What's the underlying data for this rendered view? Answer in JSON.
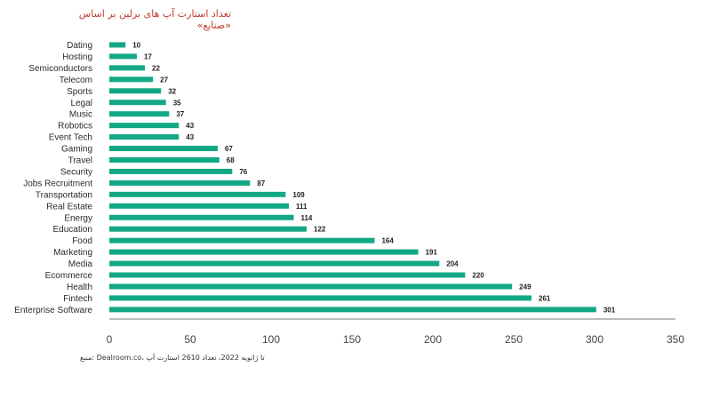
{
  "colors": {
    "bar": "#12a886",
    "axis": "#777777",
    "title": "#c0392b"
  },
  "chart_data": {
    "type": "bar",
    "orientation": "horizontal",
    "title": "تعداد استارت آپ های برلین بر اساس «صنایع»",
    "source_note": "منبع: Dealroom.co، تا ژانویه 2022، تعداد 2610 استارت آپ",
    "categories": [
      "Dating",
      "Hosting",
      "Semiconductors",
      "Telecom",
      "Sports",
      "Legal",
      "Music",
      "Robotics",
      "Event Tech",
      "Gaming",
      "Travel",
      "Security",
      "Jobs Recruitment",
      "Transportation",
      "Real Estate",
      "Energy",
      "Education",
      "Food",
      "Marketing",
      "Media",
      "Ecommerce",
      "Health",
      "Fintech",
      "Enterprise Software"
    ],
    "values": [
      10,
      17,
      22,
      27,
      32,
      35,
      37,
      43,
      43,
      67,
      68,
      76,
      87,
      109,
      111,
      114,
      122,
      164,
      191,
      204,
      220,
      249,
      261,
      301
    ],
    "xlim": [
      0,
      350
    ],
    "xticks": [
      0,
      50,
      100,
      150,
      200,
      250,
      300,
      350
    ],
    "grid": false,
    "legend": "none"
  }
}
